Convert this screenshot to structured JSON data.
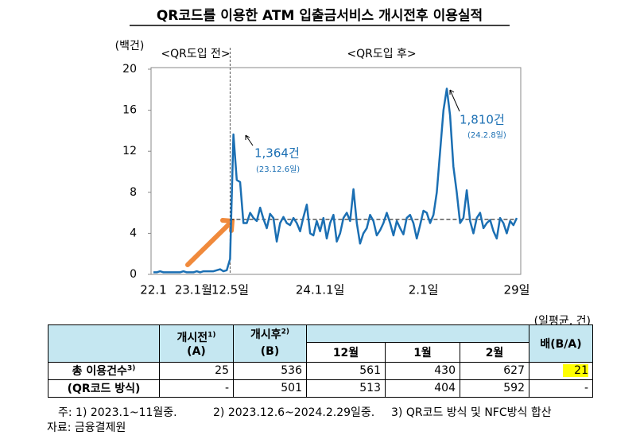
{
  "chart_data": {
    "type": "line",
    "title": "QR코드를 이용한 ATM 입출금서비스 개시전후 이용실적",
    "y_unit": "(백건)",
    "periods": [
      "<QR도입 전>",
      "<QR도입 후>"
    ],
    "categories": [
      "22.1",
      null,
      null,
      null,
      null,
      null,
      null,
      null,
      null,
      null,
      null,
      null,
      "23.1월",
      null,
      null,
      null,
      null,
      null,
      null,
      null,
      null,
      null,
      null,
      "12.5일",
      null,
      null,
      null,
      null,
      null,
      null,
      null,
      null,
      null,
      null,
      null,
      null,
      null,
      null,
      null,
      null,
      null,
      null,
      null,
      null,
      null,
      null,
      null,
      null,
      null,
      null,
      "24.1.1일",
      null,
      null,
      null,
      null,
      null,
      null,
      null,
      null,
      null,
      null,
      null,
      null,
      null,
      null,
      null,
      null,
      null,
      null,
      null,
      null,
      null,
      null,
      null,
      null,
      null,
      null,
      null,
      null,
      null,
      null,
      "2.1일",
      null,
      null,
      null,
      null,
      null,
      null,
      null,
      null,
      null,
      null,
      null,
      null,
      null,
      null,
      null,
      null,
      null,
      null,
      null,
      null,
      null,
      null,
      null,
      null,
      null,
      null,
      null,
      "29일"
    ],
    "values": [
      0.2,
      0.2,
      0.3,
      0.2,
      0.2,
      0.2,
      0.2,
      0.2,
      0.2,
      0.3,
      0.2,
      0.2,
      0.2,
      0.3,
      0.2,
      0.3,
      0.3,
      0.3,
      0.3,
      0.4,
      0.5,
      0.3,
      0.4,
      1.5,
      13.64,
      9.2,
      9.0,
      5.0,
      5.0,
      6.0,
      5.5,
      5.2,
      6.5,
      5.4,
      4.5,
      5.9,
      5.5,
      3.2,
      5.0,
      5.6,
      5.0,
      4.8,
      5.5,
      5.0,
      4.2,
      5.6,
      6.8,
      4.0,
      3.8,
      5.2,
      4.2,
      5.5,
      3.5,
      5.0,
      5.8,
      3.2,
      4.0,
      5.5,
      6.0,
      5.2,
      8.3,
      5.0,
      3.0,
      4.0,
      4.5,
      5.8,
      5.2,
      3.8,
      4.3,
      5.0,
      6.0,
      5.0,
      3.8,
      5.2,
      4.5,
      3.9,
      5.5,
      5.8,
      5.0,
      3.5,
      4.8,
      6.2,
      6.0,
      5.0,
      5.8,
      8.0,
      12.0,
      16.0,
      18.1,
      15.5,
      10.5,
      8.0,
      5.0,
      5.5,
      8.2,
      5.2,
      4.0,
      5.5,
      6.0,
      4.5,
      5.0,
      5.3,
      4.2,
      3.5,
      5.5,
      5.0,
      4.0,
      5.2,
      4.8,
      5.5
    ],
    "color": "#1b6fb3",
    "ylim": [
      0,
      20
    ],
    "yticks": [
      0,
      4,
      8,
      12,
      16,
      20
    ],
    "reference_line": 5.36,
    "annotations": [
      {
        "text": "1,364건",
        "date": "(23.12.6일)"
      },
      {
        "text": "1,810건",
        "date": "(24.2.8일)"
      }
    ]
  },
  "table": {
    "unit": "(일평균, 건)",
    "header": {
      "before": {
        "label": "개시전",
        "note": "1)",
        "sub": "(A)"
      },
      "after": {
        "label": "개시후",
        "note": "2)",
        "sub": "(B)"
      },
      "months": [
        "12월",
        "1월",
        "2월"
      ],
      "ratio": "배(B/A)"
    },
    "rows": [
      {
        "label": "총 이용건수",
        "note": "3)",
        "cells": [
          25,
          536,
          561,
          430,
          627,
          21
        ]
      },
      {
        "label": "(QR코드 방식)",
        "cells": [
          "-",
          501,
          513,
          404,
          592,
          "-"
        ]
      }
    ]
  },
  "notes": [
    "주: 1) 2023.1~11월중.",
    "2) 2023.12.6~2024.2.29일중.",
    "3) QR코드 방식 및 NFC방식 합산"
  ],
  "source": "자료: 금융결제원"
}
